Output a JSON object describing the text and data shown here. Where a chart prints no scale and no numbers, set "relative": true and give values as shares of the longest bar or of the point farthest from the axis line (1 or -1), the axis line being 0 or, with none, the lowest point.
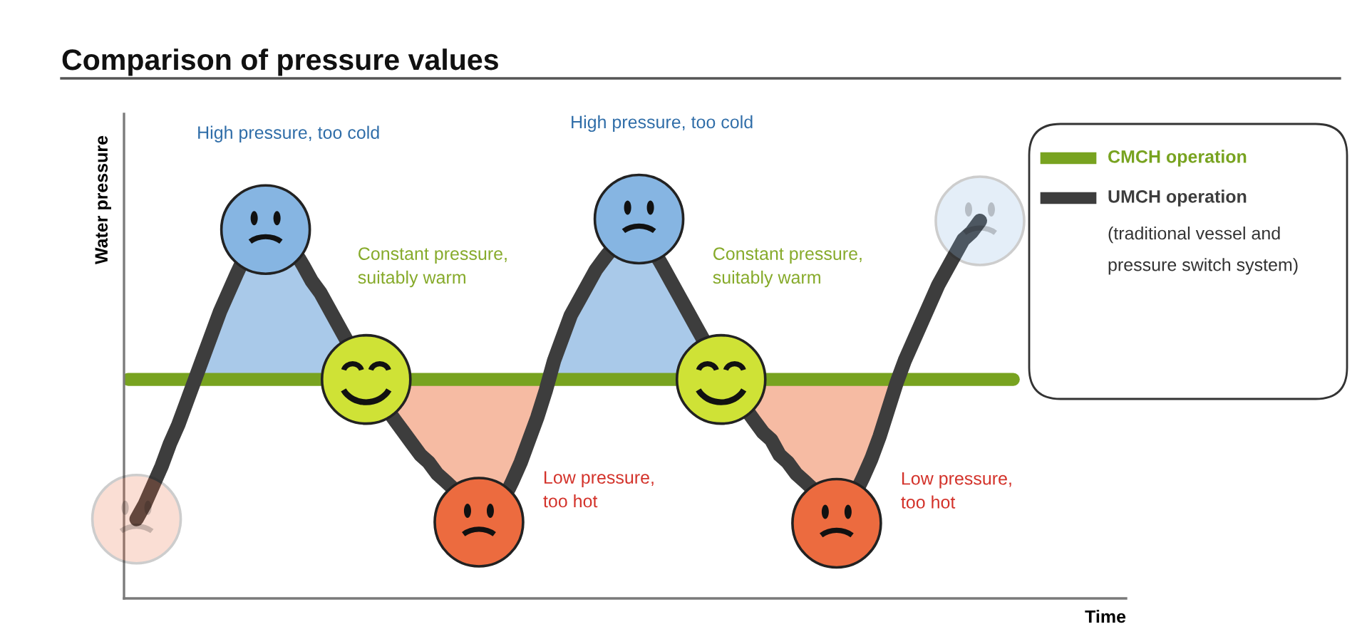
{
  "chart_data": {
    "type": "line",
    "title": "Comparison of pressure values",
    "xlabel": "Time",
    "ylabel": "Water pressure",
    "relative": true,
    "legend": "top right",
    "categories": [
      null,
      null,
      null,
      null,
      null,
      null,
      null,
      null,
      null,
      null,
      null,
      null,
      null,
      null,
      null,
      null,
      null,
      null,
      null,
      null,
      null,
      null,
      null,
      null,
      null,
      null,
      null,
      null,
      null,
      null,
      null,
      null,
      null,
      null,
      null,
      null,
      null,
      null,
      null,
      null,
      null,
      null,
      null,
      null,
      null,
      null,
      null,
      null,
      null,
      null,
      null,
      null,
      null,
      null,
      null,
      null,
      null,
      null,
      null,
      null,
      null,
      null,
      null,
      null,
      null,
      null,
      null,
      null,
      null,
      null,
      null,
      null,
      null,
      null,
      null,
      null,
      null,
      null,
      null,
      null,
      null,
      null,
      null,
      null,
      null,
      null,
      null,
      null,
      null,
      null,
      null,
      null,
      null,
      null,
      null,
      null,
      null,
      null,
      null,
      null,
      null,
      null,
      null,
      null,
      null,
      null,
      null,
      null,
      null,
      null,
      null,
      null,
      null,
      null,
      null,
      null,
      null,
      null,
      null,
      null
    ],
    "series": [
      {
        "name": "CMCH operation",
        "color": "#78a320",
        "values": [
          0.58,
          0.58,
          0.58,
          0.58,
          0.58,
          0.58,
          0.58,
          0.58,
          0.58,
          0.58,
          0.58,
          0.58,
          0.58,
          0.58,
          0.58,
          0.58,
          0.58,
          0.58,
          0.58,
          0.58,
          0.58,
          0.58,
          0.58,
          0.58,
          null,
          null,
          null,
          null,
          null,
          null,
          null,
          null,
          null,
          null,
          0.58,
          0.58,
          0.58,
          0.58,
          0.58,
          0.58,
          0.58,
          0.58,
          0.58,
          0.58,
          0.58,
          0.58,
          0.58,
          0.58,
          0.58,
          0.58,
          0.58,
          0.58,
          0.58,
          0.58,
          0.58,
          0.58,
          0.58,
          0.58,
          0.58,
          0.58,
          0.58,
          0.58,
          0.58,
          0.58,
          0.58,
          0.58,
          null,
          null,
          null,
          null,
          null,
          null,
          null,
          null,
          null,
          null,
          null,
          0.58,
          0.58,
          0.58,
          0.58,
          0.58,
          0.58,
          0.58,
          0.58,
          0.58,
          0.58,
          0.58,
          0.58,
          0.58,
          0.58,
          0.58,
          0.58,
          0.58,
          0.58,
          0.58,
          0.58,
          0.58,
          0.58,
          0.58,
          0.58,
          0.58,
          0.58,
          0.58,
          0.58,
          0.58,
          0.58,
          null,
          null,
          null,
          null,
          null,
          null,
          null,
          null,
          null,
          null,
          null,
          null,
          null
        ]
      },
      {
        "name": "UMCH operation\n(traditional vessel and\npressure switch system)",
        "color": "#3d3d3d",
        "values": [
          null,
          0.21,
          0.25,
          0.3,
          0.35,
          0.41,
          0.46,
          0.52,
          0.58,
          0.64,
          0.7,
          0.76,
          0.81,
          0.86,
          null,
          null,
          null,
          null,
          null,
          null,
          null,
          0.88,
          0.84,
          0.81,
          0.77,
          0.73,
          null,
          null,
          null,
          null,
          null,
          null,
          0.47,
          0.44,
          0.41,
          0.38,
          0.36,
          0.33,
          0.31,
          null,
          null,
          null,
          null,
          null,
          null,
          null,
          0.31,
          0.36,
          0.42,
          0.48,
          0.55,
          0.63,
          0.69,
          0.75,
          0.79,
          0.83,
          0.87,
          0.9,
          null,
          null,
          null,
          null,
          null,
          null,
          0.88,
          0.84,
          0.8,
          0.76,
          0.72,
          null,
          null,
          null,
          null,
          null,
          null,
          0.47,
          0.44,
          0.42,
          0.38,
          0.36,
          0.33,
          0.31,
          null,
          null,
          null,
          null,
          null,
          null,
          0.32,
          0.37,
          0.43,
          0.5,
          0.57,
          0.63,
          0.68,
          0.73,
          0.78,
          0.83,
          0.87,
          0.91,
          0.95,
          0.97,
          1.0,
          null,
          null,
          null,
          null,
          null,
          null,
          null,
          null,
          null,
          null,
          null,
          null,
          null,
          null,
          null,
          null,
          null
        ]
      }
    ],
    "annotations": [
      "High pressure, too cold",
      "Constant pressure,\nsuitably warm",
      "Low pressure,\ntoo hot",
      "High pressure, too cold",
      "Constant pressure,\nsuitably warm",
      "Low pressure,\ntoo hot"
    ]
  }
}
